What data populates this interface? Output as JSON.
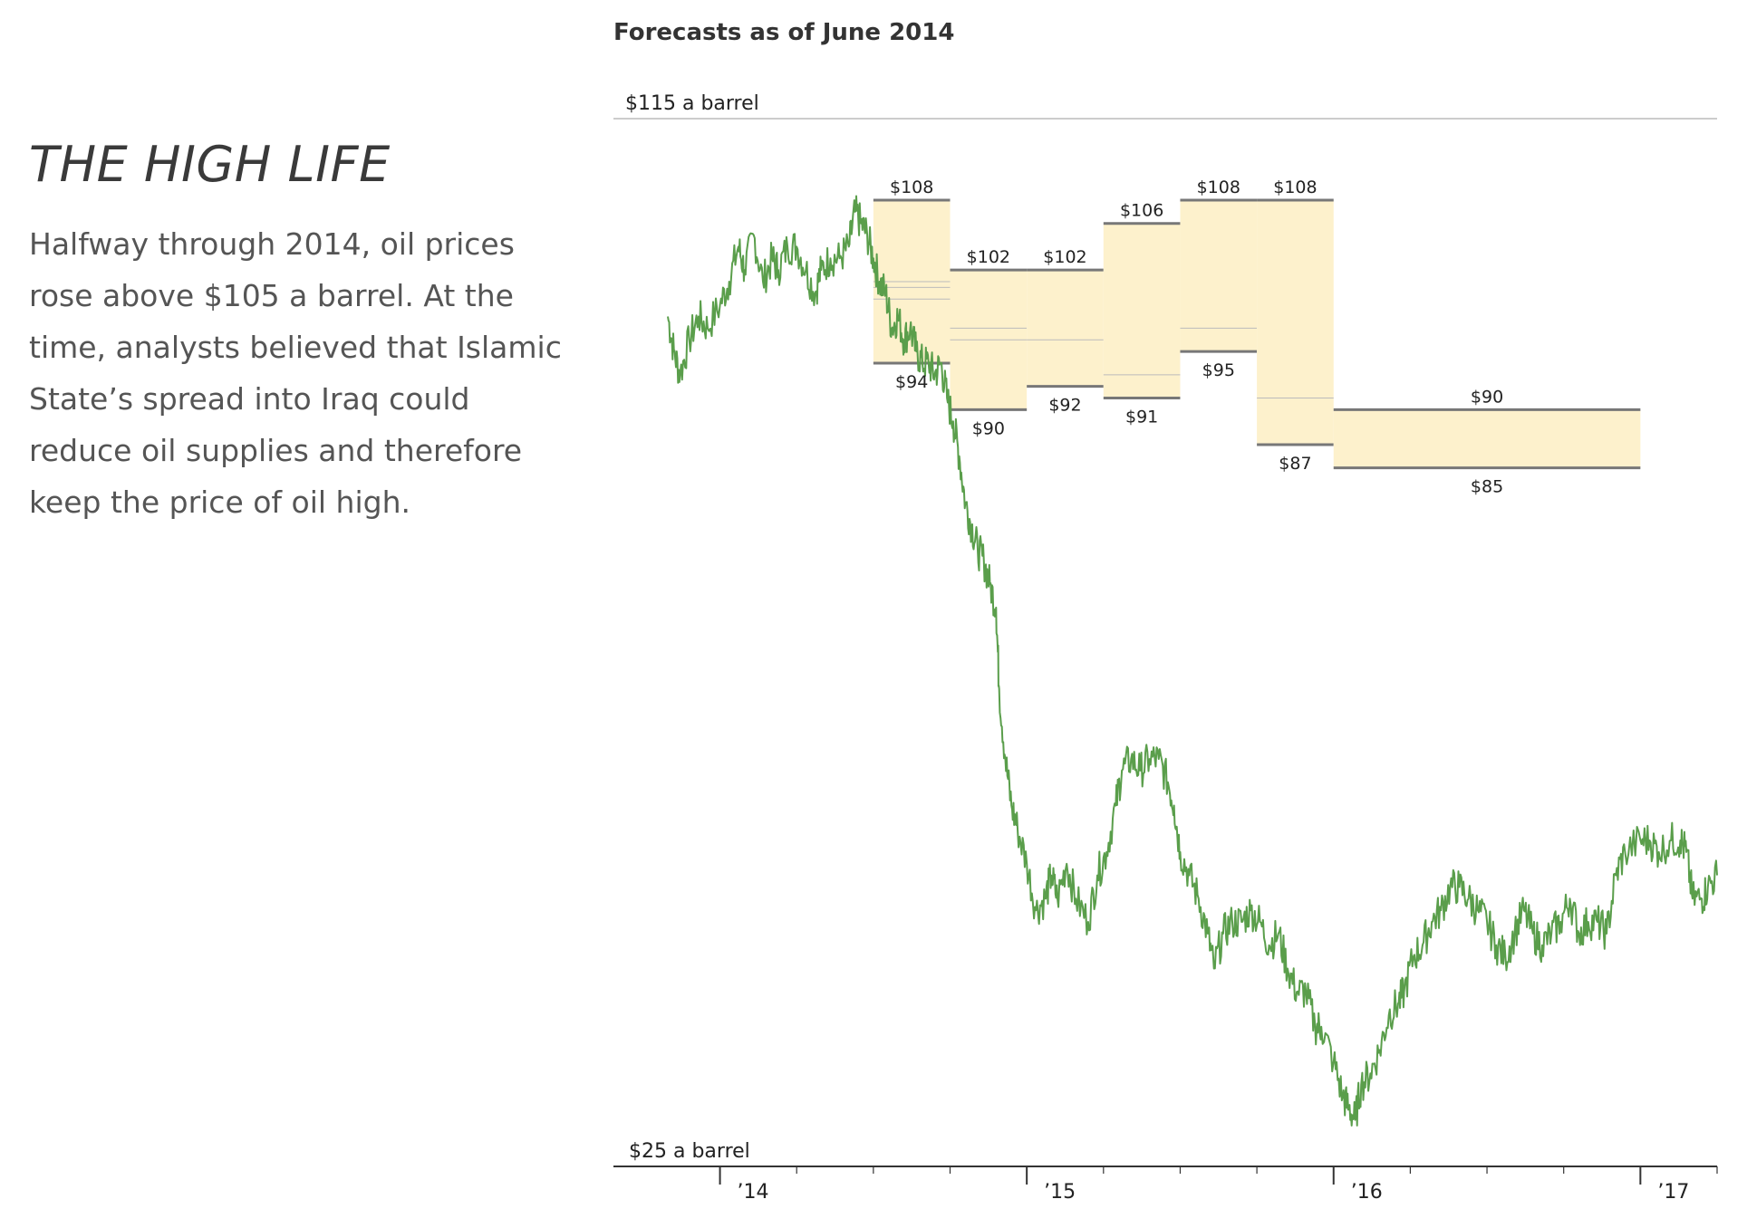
{
  "left": {
    "title": "THE HIGH LIFE",
    "body": "Halfway through 2014, oil prices rose above $105 a barrel. At the time, analysts believed that Islamic State’s spread into Iraq could reduce oil supplies and therefore keep the price of oil high."
  },
  "chart_data": {
    "type": "line",
    "title": "Forecasts as of June 2014",
    "y_top_label": "$115 a barrel",
    "y_bottom_label": "$25 a barrel",
    "ylim": [
      25,
      115
    ],
    "xlim": [
      2013.83,
      2017.25
    ],
    "x_ticks": [
      {
        "x": 2014,
        "label": "’14"
      },
      {
        "x": 2015,
        "label": "’15"
      },
      {
        "x": 2016,
        "label": "’16"
      },
      {
        "x": 2017,
        "label": "’17"
      }
    ],
    "line_color": "#5a9e4b",
    "band_fill": "#fdf1cc",
    "band_edge_color": "#777777",
    "forecast_bands": [
      {
        "x0": 2014.5,
        "x1": 2014.75,
        "high": 108,
        "low": 94,
        "high_label": "$108",
        "low_label": "$94",
        "inner": [
          101,
          100.5,
          99.5
        ]
      },
      {
        "x0": 2014.75,
        "x1": 2015.0,
        "high": 102,
        "low": 90,
        "high_label": "$102",
        "low_label": "$90",
        "inner": [
          97,
          96
        ]
      },
      {
        "x0": 2015.0,
        "x1": 2015.25,
        "high": 102,
        "low": 92,
        "high_label": "$102",
        "low_label": "$92",
        "inner": [
          96
        ]
      },
      {
        "x0": 2015.25,
        "x1": 2015.5,
        "high": 106,
        "low": 91,
        "high_label": "$106",
        "low_label": "$91",
        "inner": [
          93
        ]
      },
      {
        "x0": 2015.5,
        "x1": 2015.75,
        "high": 108,
        "low": 95,
        "high_label": "$108",
        "low_label": "$95",
        "inner": [
          97
        ]
      },
      {
        "x0": 2015.75,
        "x1": 2016.0,
        "high": 108,
        "low": 87,
        "high_label": "$108",
        "low_label": "$87",
        "inner": [
          91
        ]
      },
      {
        "x0": 2016.0,
        "x1": 2017.0,
        "high": 90,
        "low": 85,
        "high_label": "$90",
        "low_label": "$85",
        "inner": []
      }
    ],
    "series": [
      {
        "points": [
          [
            2013.83,
            98
          ],
          [
            2013.85,
            95
          ],
          [
            2013.87,
            93
          ],
          [
            2013.9,
            96
          ],
          [
            2013.93,
            98
          ],
          [
            2013.96,
            97
          ],
          [
            2014.0,
            99
          ],
          [
            2014.03,
            101
          ],
          [
            2014.06,
            104
          ],
          [
            2014.08,
            102
          ],
          [
            2014.11,
            105
          ],
          [
            2014.14,
            101
          ],
          [
            2014.17,
            103
          ],
          [
            2014.19,
            102
          ],
          [
            2014.22,
            104
          ],
          [
            2014.25,
            104
          ],
          [
            2014.28,
            102
          ],
          [
            2014.31,
            100
          ],
          [
            2014.33,
            102
          ],
          [
            2014.36,
            103
          ],
          [
            2014.39,
            103
          ],
          [
            2014.42,
            104
          ],
          [
            2014.44,
            107
          ],
          [
            2014.46,
            106
          ],
          [
            2014.48,
            105
          ],
          [
            2014.5,
            103
          ],
          [
            2014.52,
            101
          ],
          [
            2014.54,
            100
          ],
          [
            2014.56,
            97
          ],
          [
            2014.58,
            98
          ],
          [
            2014.6,
            96
          ],
          [
            2014.62,
            97
          ],
          [
            2014.64,
            95
          ],
          [
            2014.66,
            94
          ],
          [
            2014.68,
            94
          ],
          [
            2014.7,
            93
          ],
          [
            2014.72,
            94
          ],
          [
            2014.74,
            91
          ],
          [
            2014.76,
            89
          ],
          [
            2014.78,
            86
          ],
          [
            2014.8,
            82
          ],
          [
            2014.82,
            80
          ],
          [
            2014.84,
            78
          ],
          [
            2014.86,
            77
          ],
          [
            2014.88,
            75
          ],
          [
            2014.9,
            73
          ],
          [
            2014.91,
            66
          ],
          [
            2014.93,
            60
          ],
          [
            2014.95,
            56
          ],
          [
            2014.97,
            54
          ],
          [
            2015.0,
            51
          ],
          [
            2015.03,
            47
          ],
          [
            2015.06,
            48
          ],
          [
            2015.08,
            50
          ],
          [
            2015.1,
            48
          ],
          [
            2015.13,
            51
          ],
          [
            2015.16,
            48
          ],
          [
            2015.2,
            46
          ],
          [
            2015.23,
            50
          ],
          [
            2015.26,
            52
          ],
          [
            2015.29,
            56
          ],
          [
            2015.31,
            59
          ],
          [
            2015.34,
            60
          ],
          [
            2015.37,
            59
          ],
          [
            2015.4,
            60
          ],
          [
            2015.43,
            60
          ],
          [
            2015.46,
            58
          ],
          [
            2015.48,
            56
          ],
          [
            2015.5,
            52
          ],
          [
            2015.53,
            50
          ],
          [
            2015.56,
            48
          ],
          [
            2015.59,
            45
          ],
          [
            2015.61,
            42
          ],
          [
            2015.64,
            45
          ],
          [
            2015.67,
            46
          ],
          [
            2015.7,
            46
          ],
          [
            2015.73,
            47
          ],
          [
            2015.76,
            46
          ],
          [
            2015.79,
            44
          ],
          [
            2015.82,
            45
          ],
          [
            2015.85,
            42
          ],
          [
            2015.88,
            40
          ],
          [
            2015.91,
            40
          ],
          [
            2015.94,
            37
          ],
          [
            2015.96,
            37
          ],
          [
            2016.0,
            34
          ],
          [
            2016.03,
            31
          ],
          [
            2016.05,
            30
          ],
          [
            2016.07,
            29
          ],
          [
            2016.09,
            32
          ],
          [
            2016.12,
            33
          ],
          [
            2016.15,
            35
          ],
          [
            2016.18,
            38
          ],
          [
            2016.21,
            39
          ],
          [
            2016.23,
            40
          ],
          [
            2016.26,
            43
          ],
          [
            2016.29,
            44
          ],
          [
            2016.32,
            46
          ],
          [
            2016.35,
            47
          ],
          [
            2016.38,
            49
          ],
          [
            2016.41,
            49
          ],
          [
            2016.44,
            48
          ],
          [
            2016.47,
            47
          ],
          [
            2016.5,
            46
          ],
          [
            2016.53,
            44
          ],
          [
            2016.56,
            43
          ],
          [
            2016.59,
            45
          ],
          [
            2016.62,
            47
          ],
          [
            2016.65,
            45
          ],
          [
            2016.68,
            44
          ],
          [
            2016.71,
            45
          ],
          [
            2016.74,
            46
          ],
          [
            2016.77,
            48
          ],
          [
            2016.8,
            45
          ],
          [
            2016.83,
            46
          ],
          [
            2016.86,
            46
          ],
          [
            2016.89,
            45
          ],
          [
            2016.92,
            50
          ],
          [
            2016.95,
            52
          ],
          [
            2017.0,
            53
          ],
          [
            2017.03,
            53
          ],
          [
            2017.06,
            52
          ],
          [
            2017.1,
            53
          ],
          [
            2017.13,
            53
          ],
          [
            2017.15,
            52
          ],
          [
            2017.17,
            48
          ],
          [
            2017.2,
            48
          ],
          [
            2017.22,
            49
          ],
          [
            2017.25,
            50
          ]
        ]
      }
    ]
  }
}
